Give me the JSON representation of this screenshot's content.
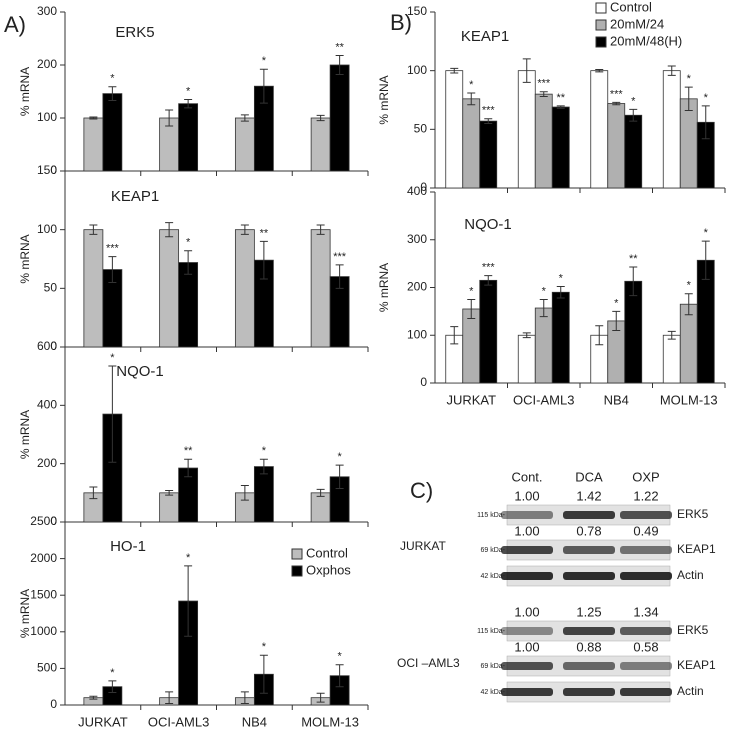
{
  "chart_data": [
    {
      "type": "bar",
      "title": "ERK5",
      "y_label": "% mRNA",
      "categories": [
        null,
        null,
        null,
        null
      ],
      "series": [
        {
          "color": "#bdbdbd",
          "values": [
            100,
            100,
            100,
            100
          ],
          "errors": [
            2,
            15,
            6,
            5
          ],
          "annotations": [
            null,
            null,
            null,
            null
          ]
        },
        {
          "color": "#000000",
          "values": [
            146,
            127,
            160,
            200
          ],
          "errors": [
            13,
            8,
            32,
            18
          ],
          "annotations": [
            "*",
            "*",
            "*",
            "**"
          ]
        }
      ],
      "ylim": [
        0,
        300
      ],
      "yticks": [
        0,
        100,
        200,
        300
      ]
    },
    {
      "type": "bar",
      "title": "KEAP1",
      "y_label": "% mRNA",
      "categories": [
        null,
        null,
        null,
        null
      ],
      "series": [
        {
          "color": "#bdbdbd",
          "values": [
            100,
            100,
            100,
            100
          ],
          "errors": [
            4,
            6,
            4,
            4
          ],
          "annotations": [
            null,
            null,
            null,
            null
          ]
        },
        {
          "color": "#000000",
          "values": [
            66,
            72,
            74,
            60
          ],
          "errors": [
            11,
            10,
            16,
            10
          ],
          "annotations": [
            "***",
            "*",
            "**",
            "***"
          ]
        }
      ],
      "ylim": [
        0,
        150
      ],
      "yticks": [
        0,
        50,
        100,
        150
      ]
    },
    {
      "type": "bar",
      "title": "NQO-1",
      "y_label": "% mRNA",
      "categories": [
        null,
        null,
        null,
        null
      ],
      "series": [
        {
          "color": "#bdbdbd",
          "values": [
            100,
            100,
            100,
            100
          ],
          "errors": [
            20,
            8,
            25,
            12
          ],
          "annotations": [
            null,
            null,
            null,
            null
          ]
        },
        {
          "color": "#000000",
          "values": [
            370,
            185,
            190,
            155
          ],
          "errors": [
            165,
            30,
            25,
            40
          ],
          "annotations": [
            "*",
            "**",
            "*",
            "*"
          ]
        }
      ],
      "ylim": [
        0,
        600
      ],
      "yticks": [
        0,
        200,
        400,
        600
      ]
    },
    {
      "type": "bar",
      "title": "HO-1",
      "y_label": "% mRNA",
      "categories": [
        "JURKAT",
        "OCI-AML3",
        "NB4",
        "MOLM-13"
      ],
      "series": [
        {
          "name": "Control",
          "color": "#bdbdbd",
          "values": [
            100,
            100,
            100,
            100
          ],
          "errors": [
            20,
            80,
            80,
            60
          ],
          "annotations": [
            null,
            null,
            null,
            null
          ]
        },
        {
          "name": "Oxphos",
          "color": "#000000",
          "values": [
            250,
            1420,
            420,
            400
          ],
          "errors": [
            80,
            480,
            260,
            150
          ],
          "annotations": [
            "*",
            "*",
            "*",
            "*"
          ]
        }
      ],
      "ylim": [
        0,
        2500
      ],
      "yticks": [
        0,
        500,
        1000,
        1500,
        2000,
        2500
      ],
      "legend": "upper right"
    },
    {
      "type": "bar",
      "title": "KEAP1",
      "y_label": "% mRNA",
      "categories": [
        null,
        null,
        null,
        null
      ],
      "series": [
        {
          "name": "Control",
          "color": "#ffffff",
          "values": [
            100,
            100,
            100,
            100
          ],
          "errors": [
            2,
            10,
            1,
            4
          ],
          "annotations": [
            null,
            null,
            null,
            null
          ]
        },
        {
          "name": "20mM/24",
          "color": "#b0b0b0",
          "values": [
            76,
            80,
            72,
            76
          ],
          "errors": [
            5,
            2,
            1,
            10
          ],
          "annotations": [
            "*",
            "***",
            "***",
            "*"
          ]
        },
        {
          "name": "20mM/48(H)",
          "color": "#000000",
          "values": [
            57,
            69,
            62,
            56
          ],
          "errors": [
            2,
            1,
            5,
            14
          ],
          "annotations": [
            "***",
            "**",
            "*",
            "*"
          ]
        }
      ],
      "ylim": [
        0,
        150
      ],
      "yticks": [
        0,
        50,
        100,
        150
      ],
      "legend": "upper right"
    },
    {
      "type": "bar",
      "title": "NQO-1",
      "y_label": "% mRNA",
      "categories": [
        "JURKAT",
        "OCI-AML3",
        "NB4",
        "MOLM-13"
      ],
      "series": [
        {
          "color": "#ffffff",
          "values": [
            100,
            100,
            100,
            100
          ],
          "errors": [
            18,
            5,
            20,
            8
          ],
          "annotations": [
            null,
            null,
            null,
            null
          ]
        },
        {
          "color": "#b0b0b0",
          "values": [
            155,
            157,
            130,
            165
          ],
          "errors": [
            20,
            18,
            20,
            22
          ],
          "annotations": [
            "*",
            "*",
            "*",
            "*"
          ]
        },
        {
          "color": "#000000",
          "values": [
            215,
            190,
            213,
            257
          ],
          "errors": [
            10,
            12,
            30,
            40
          ],
          "annotations": [
            "***",
            "*",
            "**",
            "*"
          ]
        }
      ],
      "ylim": [
        0,
        400
      ],
      "yticks": [
        0,
        100,
        200,
        300,
        400
      ]
    }
  ],
  "panel_labels": [
    "A)",
    "B)",
    "C)"
  ],
  "blot": {
    "lanes": [
      "Cont.",
      "DCA",
      "OXP"
    ],
    "groups": [
      {
        "cell": "JURKAT",
        "rows": [
          {
            "marker": "115 kDa-",
            "protein": "ERK5",
            "quant": [
              "1.00",
              "1.42",
              "1.22"
            ]
          },
          {
            "marker": "69 kDa-",
            "protein": "KEAP1",
            "quant": [
              "1.00",
              "0.78",
              "0.49"
            ]
          },
          {
            "marker": "42 kDa-",
            "protein": "Actin"
          }
        ]
      },
      {
        "cell": "OCI –AML3",
        "rows": [
          {
            "marker": "115 kDa-",
            "protein": "ERK5",
            "quant": [
              "1.00",
              "1.25",
              "1.34"
            ]
          },
          {
            "marker": "69 kDa-",
            "protein": "KEAP1",
            "quant": [
              "1.00",
              "0.88",
              "0.58"
            ]
          },
          {
            "marker": "42 kDa-",
            "protein": "Actin"
          }
        ]
      }
    ]
  }
}
